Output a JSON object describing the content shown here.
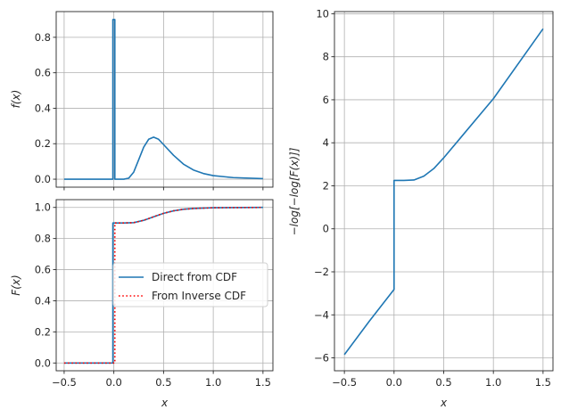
{
  "chart_data": [
    {
      "type": "line",
      "panel": "top-left",
      "xlabel": "",
      "ylabel": "f(x)",
      "xlim": [
        -0.58,
        1.6
      ],
      "ylim": [
        -0.045,
        0.945
      ],
      "xticks": [
        -0.5,
        0.0,
        0.5,
        1.0,
        1.5
      ],
      "xtick_labels_visible": false,
      "yticks": [
        0.0,
        0.2,
        0.4,
        0.6,
        0.8
      ],
      "ytick_labels": [
        "0.0",
        "0.2",
        "0.4",
        "0.6",
        "0.8"
      ],
      "grid": true,
      "series": [
        {
          "color": "#1f77b4",
          "points": [
            [
              -0.5,
              0.0
            ],
            [
              -0.01,
              0.0
            ],
            [
              -0.01,
              0.9
            ],
            [
              0.01,
              0.9
            ],
            [
              0.01,
              0.0
            ],
            [
              0.1,
              0.0
            ],
            [
              0.15,
              0.006
            ],
            [
              0.2,
              0.04
            ],
            [
              0.25,
              0.11
            ],
            [
              0.3,
              0.18
            ],
            [
              0.35,
              0.225
            ],
            [
              0.4,
              0.237
            ],
            [
              0.45,
              0.225
            ],
            [
              0.5,
              0.195
            ],
            [
              0.6,
              0.135
            ],
            [
              0.7,
              0.085
            ],
            [
              0.8,
              0.052
            ],
            [
              0.9,
              0.032
            ],
            [
              1.0,
              0.02
            ],
            [
              1.2,
              0.009
            ],
            [
              1.5,
              0.003
            ]
          ]
        }
      ]
    },
    {
      "type": "line",
      "panel": "bottom-left",
      "xlabel": "x",
      "ylabel": "F(x)",
      "xlim": [
        -0.58,
        1.6
      ],
      "ylim": [
        -0.05,
        1.05
      ],
      "xticks": [
        -0.5,
        0.0,
        0.5,
        1.0,
        1.5
      ],
      "xtick_labels": [
        "−0.5",
        "0.0",
        "0.5",
        "1.0",
        "1.5"
      ],
      "yticks": [
        0.0,
        0.2,
        0.4,
        0.6,
        0.8,
        1.0
      ],
      "ytick_labels": [
        "0.0",
        "0.2",
        "0.4",
        "0.6",
        "0.8",
        "1.0"
      ],
      "grid": true,
      "legend_position": "center-right",
      "series": [
        {
          "name": "Direct from CDF",
          "color": "#1f77b4",
          "style": "solid",
          "points": [
            [
              -0.5,
              0.0
            ],
            [
              -0.01,
              0.0
            ],
            [
              -0.01,
              0.9
            ],
            [
              0.1,
              0.9
            ],
            [
              0.2,
              0.902
            ],
            [
              0.3,
              0.917
            ],
            [
              0.4,
              0.94
            ],
            [
              0.5,
              0.962
            ],
            [
              0.6,
              0.978
            ],
            [
              0.7,
              0.988
            ],
            [
              0.8,
              0.993
            ],
            [
              1.0,
              0.998
            ],
            [
              1.5,
              1.0
            ]
          ]
        },
        {
          "name": "From Inverse CDF",
          "color": "#ff0000",
          "style": "dotted",
          "points": [
            [
              -0.5,
              0.0
            ],
            [
              0.01,
              0.0
            ],
            [
              0.01,
              0.9
            ],
            [
              0.1,
              0.9
            ],
            [
              0.2,
              0.902
            ],
            [
              0.3,
              0.917
            ],
            [
              0.4,
              0.94
            ],
            [
              0.5,
              0.962
            ],
            [
              0.6,
              0.978
            ],
            [
              0.7,
              0.988
            ],
            [
              0.8,
              0.993
            ],
            [
              1.0,
              0.998
            ],
            [
              1.5,
              1.0
            ]
          ]
        }
      ]
    },
    {
      "type": "line",
      "panel": "right",
      "xlabel": "x",
      "ylabel": "−log[−log[F(x)]]",
      "xlim": [
        -0.6,
        1.6
      ],
      "ylim": [
        -6.6,
        10.1
      ],
      "xticks": [
        -0.5,
        0.0,
        0.5,
        1.0,
        1.5
      ],
      "xtick_labels": [
        "−0.5",
        "0.0",
        "0.5",
        "1.0",
        "1.5"
      ],
      "yticks": [
        -6,
        -4,
        -2,
        0,
        2,
        4,
        6,
        8,
        10
      ],
      "ytick_labels": [
        "−6",
        "−4",
        "−2",
        "0",
        "2",
        "4",
        "6",
        "8",
        "10"
      ],
      "grid": true,
      "series": [
        {
          "color": "#1f77b4",
          "points": [
            [
              -0.5,
              -5.85
            ],
            [
              -0.25,
              -4.3
            ],
            [
              0.0,
              -2.82
            ],
            [
              0.0,
              2.25
            ],
            [
              0.1,
              2.25
            ],
            [
              0.2,
              2.27
            ],
            [
              0.3,
              2.45
            ],
            [
              0.4,
              2.8
            ],
            [
              0.5,
              3.3
            ],
            [
              0.7,
              4.4
            ],
            [
              1.0,
              6.05
            ],
            [
              1.5,
              9.3
            ]
          ]
        }
      ]
    }
  ]
}
